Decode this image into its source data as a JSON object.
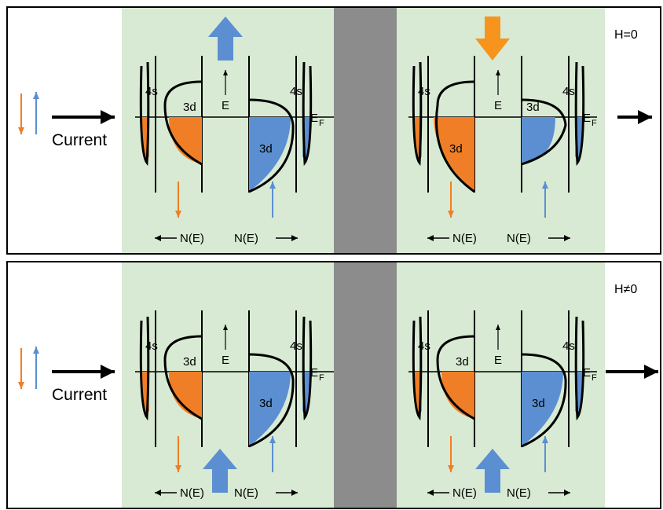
{
  "colors": {
    "ferromagnet_bg": "#d8ead3",
    "barrier": "#8c8c8c",
    "spin_down": "#f07e26",
    "spin_up": "#5b8fd1",
    "arrow_up_moment": "#5b8fd1",
    "arrow_down_moment": "#f7941d",
    "fill_down": "#f07e26",
    "fill_up": "#5b8fd1"
  },
  "panels": [
    {
      "id": "top",
      "field_label": "H=0",
      "current_label": "Current",
      "output_arrow": "short",
      "left_moment": "up",
      "right_moment": "down",
      "left_moment_position": "top",
      "right_moment_position": "top",
      "left_electrode": {
        "band_4s": "4s",
        "band_3d_left": "3d",
        "band_3d_right": "3d",
        "band_4s_right": "4s"
      },
      "right_electrode": {
        "band_4s": "4s",
        "band_3d_left": "3d",
        "band_3d_right": "3d",
        "band_4s_right": "4s"
      },
      "energy_label": "E",
      "fermi_label": "E",
      "fermi_sub": "F",
      "dos_label_left": "N(E)",
      "dos_label_right": "N(E)"
    },
    {
      "id": "bottom",
      "field_label": "H≠0",
      "current_label": "Current",
      "output_arrow": "long",
      "left_moment": "up",
      "right_moment": "up",
      "left_moment_position": "bottom",
      "right_moment_position": "bottom",
      "left_electrode": {
        "band_4s": "4s",
        "band_3d_left": "3d",
        "band_3d_right": "3d",
        "band_4s_right": "4s"
      },
      "right_electrode": {
        "band_4s": "4s",
        "band_3d_left": "3d",
        "band_3d_right": "3d",
        "band_4s_right": "4s"
      },
      "energy_label": "E",
      "fermi_label": "E",
      "fermi_sub": "F",
      "dos_label_left": "N(E)",
      "dos_label_right": "N(E)"
    }
  ]
}
